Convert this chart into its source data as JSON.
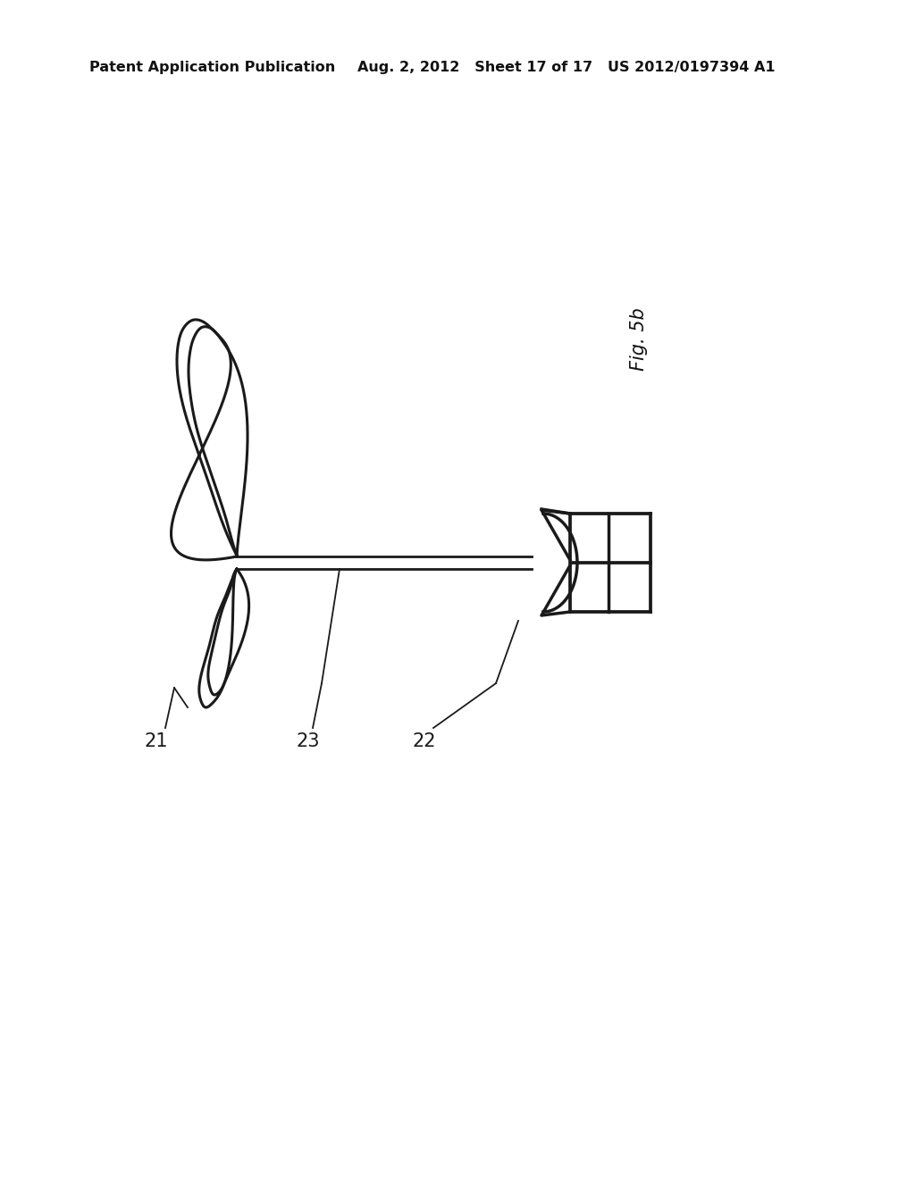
{
  "background_color": "#ffffff",
  "header_left": "Patent Application Publication",
  "header_center": "Aug. 2, 2012   Sheet 17 of 17",
  "header_right": "US 2012/0197394 A1",
  "fig_label": "Fig. 5b",
  "label_21": "21",
  "label_22": "22",
  "label_23": "23",
  "line_color": "#1a1a1a",
  "line_width": 2.2,
  "header_fontsize": 11.5,
  "label_fontsize": 15,
  "figlabel_fontsize": 15
}
